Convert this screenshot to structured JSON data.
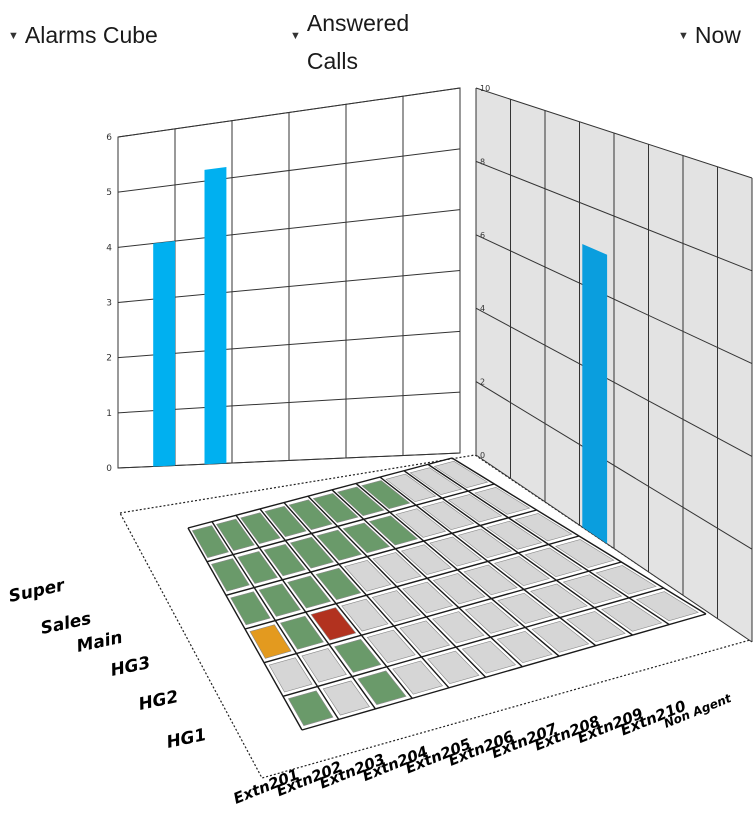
{
  "controls": {
    "cube": "Alarms Cube",
    "measure": "Answered Calls",
    "time": "Now"
  },
  "colors": {
    "bar": "#00b0f0",
    "bar_right": "#0a9ede",
    "green": "#6a9a6a",
    "grey": "#d6d6d6",
    "orange": "#e39a1f",
    "red": "#b2321f",
    "grid": "#333333"
  },
  "chart_data": {
    "type": "bar",
    "left_panel": {
      "ylim": [
        0,
        6
      ],
      "yticks": [
        "0",
        "1",
        "2",
        "3",
        "4",
        "5",
        "6"
      ],
      "bars": [
        {
          "row": "HG1",
          "value": 4.0
        },
        {
          "row": "HG2",
          "value": 5.2
        }
      ]
    },
    "right_panel": {
      "ylim": [
        0,
        10
      ],
      "yticks": [
        "0",
        "2",
        "4",
        "6",
        "8",
        "10"
      ],
      "bars": [
        {
          "column": "Extn208",
          "value": 7.0
        }
      ]
    },
    "columns": [
      "Extn201",
      "Extn202",
      "Extn203",
      "Extn204",
      "Extn205",
      "Extn206",
      "Extn207",
      "Extn208",
      "Extn209",
      "Extn210",
      "Non Agent"
    ],
    "rows": [
      "HG1",
      "HG2",
      "HG3",
      "Main",
      "Sales",
      "Super"
    ],
    "heatmap": [
      [
        "green",
        "grey",
        "green",
        "grey",
        "grey",
        "grey",
        "grey",
        "grey",
        "grey",
        "grey",
        "grey"
      ],
      [
        "grey",
        "grey",
        "green",
        "grey",
        "grey",
        "grey",
        "grey",
        "grey",
        "grey",
        "grey",
        "grey"
      ],
      [
        "orange",
        "green",
        "red",
        "grey",
        "grey",
        "grey",
        "grey",
        "grey",
        "grey",
        "grey",
        "grey"
      ],
      [
        "green",
        "green",
        "green",
        "green",
        "grey",
        "grey",
        "grey",
        "grey",
        "grey",
        "grey",
        "grey"
      ],
      [
        "green",
        "green",
        "green",
        "green",
        "green",
        "green",
        "green",
        "grey",
        "grey",
        "grey",
        "grey"
      ],
      [
        "green",
        "green",
        "green",
        "green",
        "green",
        "green",
        "green",
        "green",
        "grey",
        "grey",
        "grey"
      ]
    ]
  }
}
